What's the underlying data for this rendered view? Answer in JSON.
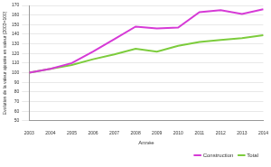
{
  "chart_data": {
    "type": "line",
    "x_label": "Année",
    "y_label": "Evolution de la valeur ajoutée en valeur (2003=100)",
    "categories": [
      "2003",
      "2004",
      "2005",
      "2006",
      "2007",
      "2008",
      "2009",
      "2010",
      "2011",
      "2012",
      "2013",
      "2014"
    ],
    "series": [
      {
        "name": "Construction",
        "color": "#d63ad6",
        "values": [
          100,
          104,
          110,
          122,
          135,
          148,
          146,
          147,
          163,
          165,
          161,
          166
        ]
      },
      {
        "name": "Total",
        "color": "#7ccc3c",
        "values": [
          100,
          104,
          108,
          114,
          119,
          125,
          122,
          128,
          132,
          134,
          136,
          139
        ]
      }
    ],
    "ylim": [
      50,
      170
    ],
    "yticks": [
      50,
      60,
      70,
      80,
      90,
      100,
      110,
      120,
      130,
      140,
      150,
      160,
      170
    ],
    "grid": true,
    "legend": "bottom"
  }
}
